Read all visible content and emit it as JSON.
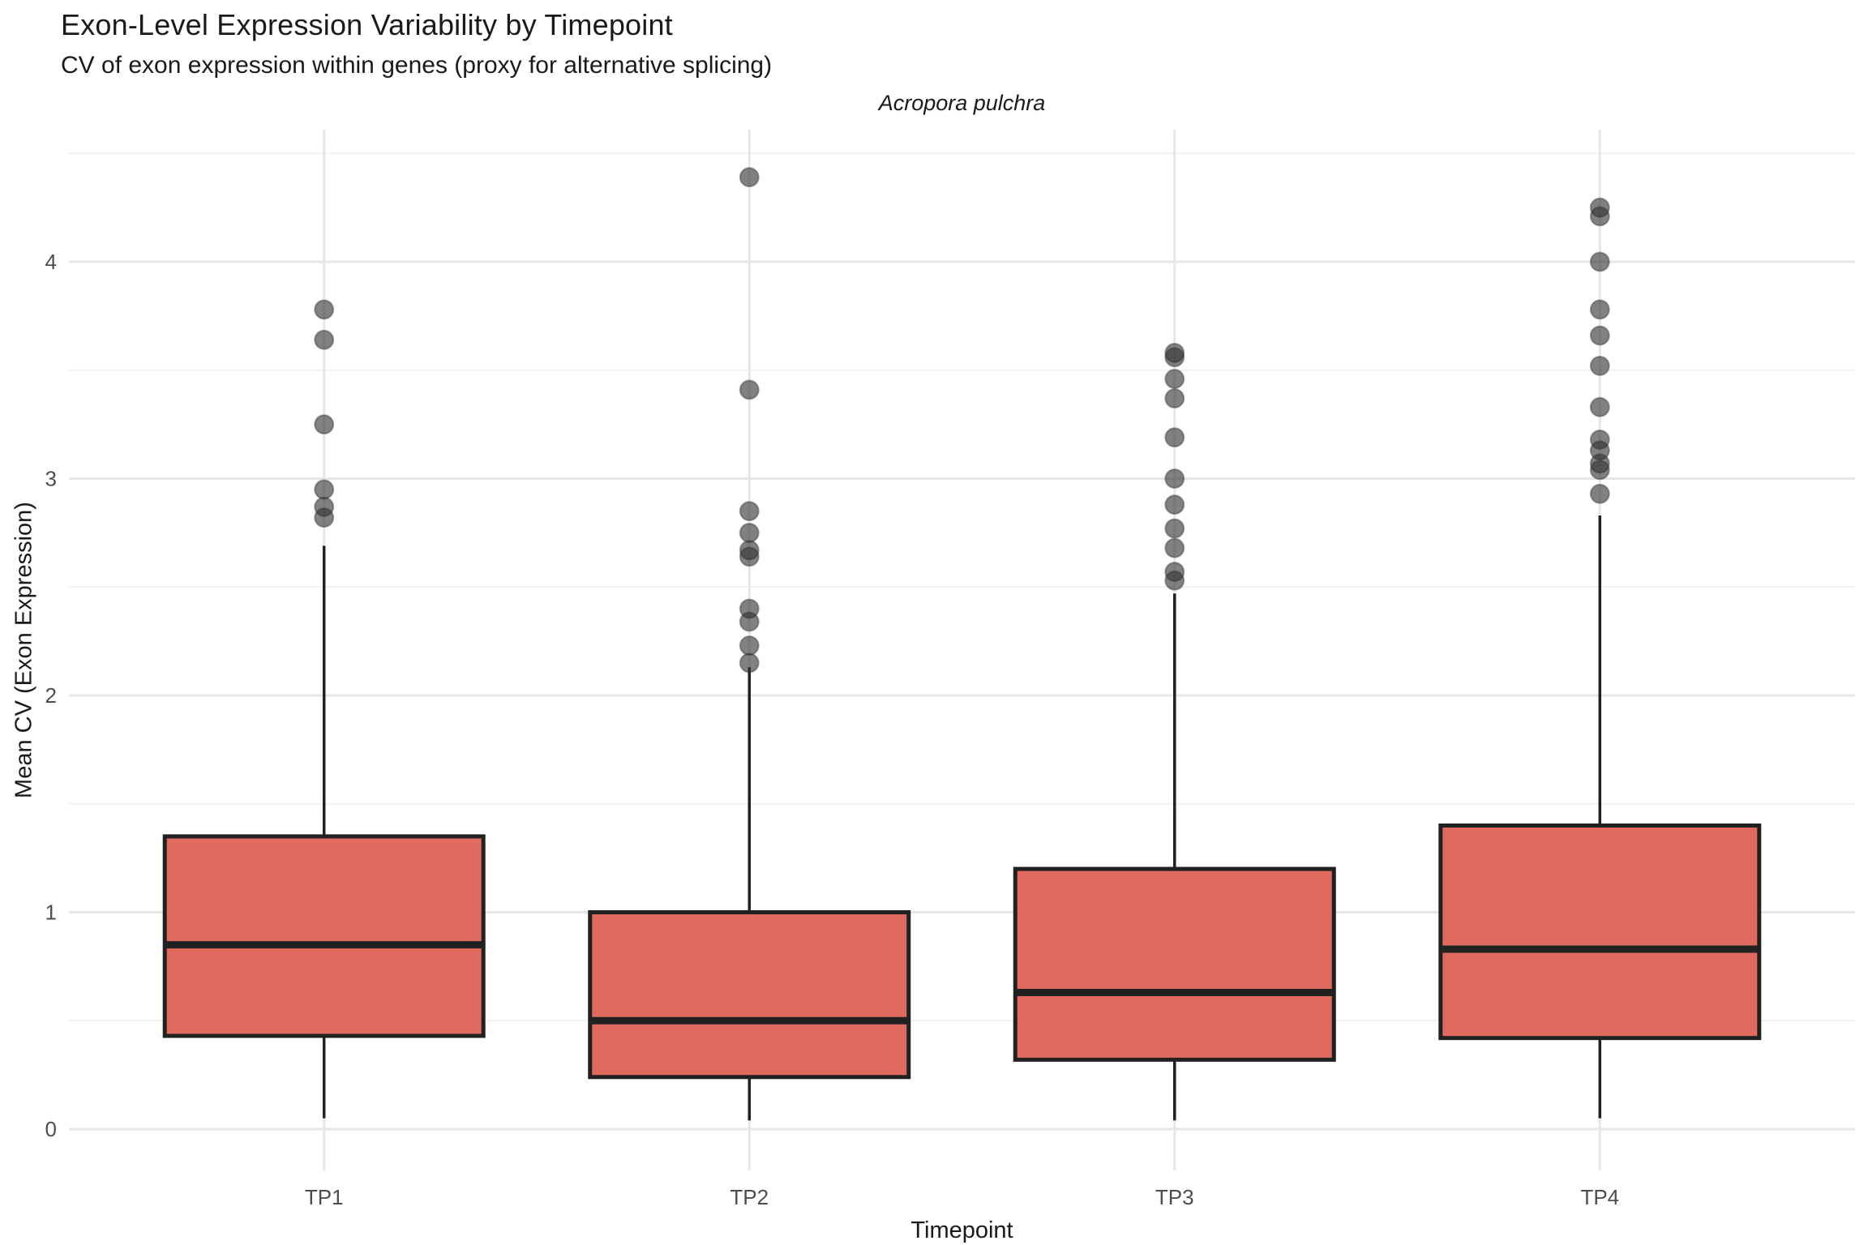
{
  "chart_data": {
    "type": "boxplot",
    "title": "Exon-Level Expression Variability by Timepoint",
    "subtitle": "CV of exon expression within genes (proxy for alternative splicing)",
    "facet_label": "Acropora pulchra",
    "xlabel": "Timepoint",
    "ylabel": "Mean CV (Exon Expression)",
    "categories": [
      "TP1",
      "TP2",
      "TP3",
      "TP4"
    ],
    "ylim": [
      -0.19,
      4.61
    ],
    "yticks": [
      0,
      1,
      2,
      3,
      4
    ],
    "yticks_minor": [
      0.5,
      1.5,
      2.5,
      3.5,
      4.5
    ],
    "grid": true,
    "legend": "none",
    "series": [
      {
        "category": "TP1",
        "q1": 0.43,
        "median": 0.85,
        "q3": 1.35,
        "whisker_low": 0.05,
        "whisker_high": 2.69,
        "outliers": [
          2.82,
          2.87,
          2.95,
          3.25,
          3.64,
          3.78
        ]
      },
      {
        "category": "TP2",
        "q1": 0.24,
        "median": 0.5,
        "q3": 1.0,
        "whisker_low": 0.04,
        "whisker_high": 2.13,
        "outliers": [
          2.15,
          2.23,
          2.34,
          2.4,
          2.64,
          2.67,
          2.75,
          2.85,
          3.41,
          4.39
        ]
      },
      {
        "category": "TP3",
        "q1": 0.32,
        "median": 0.63,
        "q3": 1.2,
        "whisker_low": 0.04,
        "whisker_high": 2.47,
        "outliers": [
          2.53,
          2.57,
          2.68,
          2.77,
          2.88,
          3.0,
          3.19,
          3.37,
          3.46,
          3.56,
          3.58
        ]
      },
      {
        "category": "TP4",
        "q1": 0.42,
        "median": 0.83,
        "q3": 1.4,
        "whisker_low": 0.05,
        "whisker_high": 2.83,
        "outliers": [
          2.93,
          3.04,
          3.07,
          3.13,
          3.18,
          3.33,
          3.52,
          3.66,
          3.78,
          4.0,
          4.21,
          4.25
        ]
      }
    ],
    "colors": {
      "box_fill": "#e06a5e",
      "box_stroke": "#212121",
      "median_stroke": "#212121",
      "whisker_stroke": "#212121",
      "outlier_point": "#333333",
      "grid_major": "#e6e6e6",
      "grid_minor": "#f1f1f1",
      "axis_text": "#4d4d4d",
      "background": "#ffffff"
    }
  }
}
